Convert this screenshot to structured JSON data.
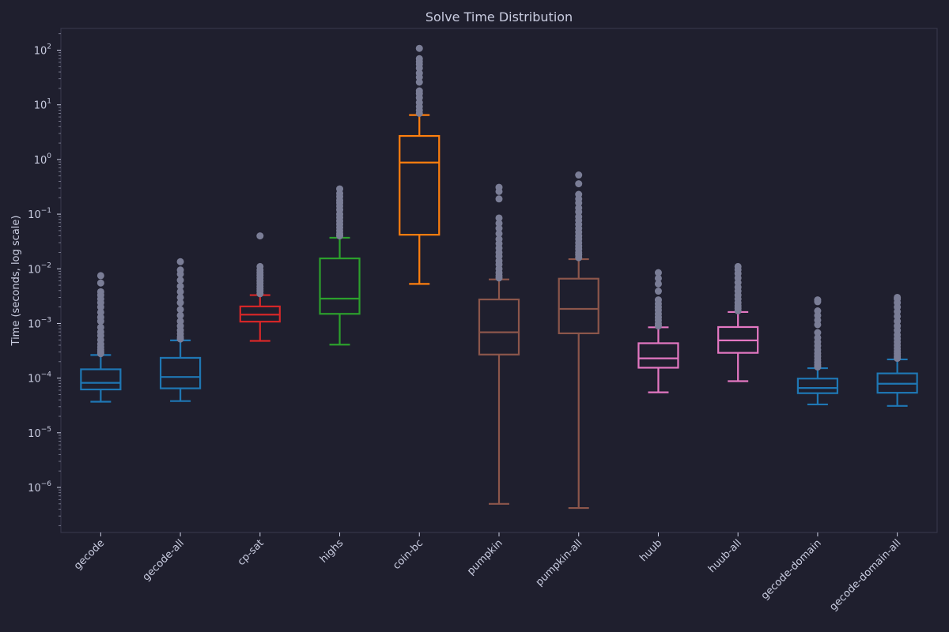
{
  "chart_data": {
    "type": "box",
    "title": "Solve Time Distribution",
    "xlabel": "",
    "ylabel": "Time (seconds, log scale)",
    "yscale": "log",
    "ylim": [
      1.5e-07,
      250
    ],
    "y_ticks": [
      {
        "value": 1e-06,
        "base": "10",
        "exp": "−6"
      },
      {
        "value": 1e-05,
        "base": "10",
        "exp": "−5"
      },
      {
        "value": 0.0001,
        "base": "10",
        "exp": "−4"
      },
      {
        "value": 0.001,
        "base": "10",
        "exp": "−3"
      },
      {
        "value": 0.01,
        "base": "10",
        "exp": "−2"
      },
      {
        "value": 0.1,
        "base": "10",
        "exp": "−1"
      },
      {
        "value": 1.0,
        "base": "10",
        "exp": "0"
      },
      {
        "value": 10.0,
        "base": "10",
        "exp": "1"
      },
      {
        "value": 100.0,
        "base": "10",
        "exp": "2"
      }
    ],
    "outlier_color": "#7a7d96",
    "series": [
      {
        "name": "gecode",
        "color": "#1f77b4",
        "whislo": 3.7e-05,
        "q1": 6.2e-05,
        "median": 8.2e-05,
        "q3": 0.000145,
        "whishi": 0.000265,
        "outliers": [
          0.00028,
          0.0003,
          0.00033,
          0.00037,
          0.00042,
          0.0005,
          0.0006,
          0.0007,
          0.00085,
          0.0011,
          0.0013,
          0.0016,
          0.002,
          0.0024,
          0.0028,
          0.0033,
          0.0038,
          0.0055,
          0.0075
        ]
      },
      {
        "name": "gecode-all",
        "color": "#1f77b4",
        "whislo": 3.8e-05,
        "q1": 6.5e-05,
        "median": 0.000105,
        "q3": 0.000235,
        "whishi": 0.00049,
        "outliers": [
          0.00052,
          0.00057,
          0.00065,
          0.00075,
          0.0009,
          0.0011,
          0.0014,
          0.0018,
          0.0024,
          0.003,
          0.0038,
          0.0048,
          0.0062,
          0.008,
          0.0095,
          0.0135
        ]
      },
      {
        "name": "cp-sat",
        "color": "#d62728",
        "whislo": 0.00048,
        "q1": 0.00108,
        "median": 0.00145,
        "q3": 0.00205,
        "whishi": 0.0033,
        "outliers": [
          0.0035,
          0.0039,
          0.0043,
          0.0048,
          0.0054,
          0.006,
          0.0068,
          0.0076,
          0.0085,
          0.0095,
          0.011,
          0.04
        ]
      },
      {
        "name": "highs",
        "color": "#2ca02c",
        "whislo": 0.00041,
        "q1": 0.0015,
        "median": 0.00285,
        "q3": 0.0155,
        "whishi": 0.037,
        "outliers": [
          0.04,
          0.044,
          0.05,
          0.057,
          0.065,
          0.075,
          0.087,
          0.1,
          0.12,
          0.14,
          0.16,
          0.18,
          0.21,
          0.24,
          0.29
        ]
      },
      {
        "name": "coin-bc",
        "color": "#ff7f0e",
        "whislo": 0.0053,
        "q1": 0.042,
        "median": 0.88,
        "q3": 2.7,
        "whishi": 6.5,
        "outliers": [
          7,
          8,
          9.3,
          11,
          13.5,
          16,
          18,
          26,
          32,
          38,
          47,
          55,
          62,
          70,
          108
        ]
      },
      {
        "name": "pumpkin",
        "color": "#8c564b",
        "whislo": 5e-07,
        "q1": 0.00027,
        "median": 0.00069,
        "q3": 0.00275,
        "whishi": 0.0064,
        "outliers": [
          0.0068,
          0.0075,
          0.0085,
          0.01,
          0.012,
          0.014,
          0.017,
          0.02,
          0.024,
          0.029,
          0.035,
          0.044,
          0.055,
          0.068,
          0.085,
          0.19,
          0.26,
          0.31
        ]
      },
      {
        "name": "pumpkin-all",
        "color": "#8c564b",
        "whislo": 4.2e-07,
        "q1": 0.00066,
        "median": 0.00185,
        "q3": 0.0066,
        "whishi": 0.015,
        "outliers": [
          0.016,
          0.018,
          0.02,
          0.023,
          0.026,
          0.03,
          0.035,
          0.04,
          0.047,
          0.055,
          0.065,
          0.077,
          0.09,
          0.11,
          0.13,
          0.16,
          0.19,
          0.23,
          0.36,
          0.52
        ]
      },
      {
        "name": "huub",
        "color": "#e377c2",
        "whislo": 5.5e-05,
        "q1": 0.000155,
        "median": 0.00023,
        "q3": 0.000435,
        "whishi": 0.00085,
        "outliers": [
          0.0009,
          0.001,
          0.00115,
          0.0013,
          0.0015,
          0.00175,
          0.002,
          0.0023,
          0.0027,
          0.0039,
          0.0053,
          0.0067,
          0.0085
        ]
      },
      {
        "name": "huub-all",
        "color": "#e377c2",
        "whislo": 8.8e-05,
        "q1": 0.00029,
        "median": 0.00049,
        "q3": 0.00086,
        "whishi": 0.00162,
        "outliers": [
          0.0017,
          0.0019,
          0.0021,
          0.0024,
          0.0028,
          0.0033,
          0.0039,
          0.0046,
          0.0056,
          0.0068,
          0.0082,
          0.0096,
          0.011
        ]
      },
      {
        "name": "gecode-domain",
        "color": "#1f77b4",
        "whislo": 3.3e-05,
        "q1": 5.3e-05,
        "median": 6.6e-05,
        "q3": 9.8e-05,
        "whishi": 0.000152,
        "outliers": [
          0.00016,
          0.000175,
          0.000195,
          0.00022,
          0.00025,
          0.000285,
          0.00033,
          0.00039,
          0.00046,
          0.00055,
          0.00068,
          0.00095,
          0.00115,
          0.0014,
          0.0017,
          0.0025,
          0.0027
        ]
      },
      {
        "name": "gecode-domain-all",
        "color": "#1f77b4",
        "whislo": 3.1e-05,
        "q1": 5.4e-05,
        "median": 7.9e-05,
        "q3": 0.000122,
        "whishi": 0.00022,
        "outliers": [
          0.00023,
          0.00025,
          0.00028,
          0.00031,
          0.00035,
          0.0004,
          0.00046,
          0.00053,
          0.00062,
          0.00075,
          0.0009,
          0.0011,
          0.00135,
          0.00165,
          0.002,
          0.0024,
          0.0028,
          0.003
        ]
      }
    ]
  }
}
